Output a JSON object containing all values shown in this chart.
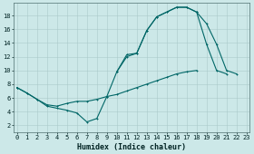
{
  "xlabel": "Humidex (Indice chaleur)",
  "bg_color": "#cce8e8",
  "grid_color": "#aacaca",
  "line_color": "#006666",
  "x_ticks": [
    0,
    1,
    2,
    3,
    4,
    5,
    6,
    7,
    8,
    9,
    10,
    11,
    12,
    13,
    14,
    15,
    16,
    17,
    18,
    19,
    20,
    21,
    22,
    23
  ],
  "y_ticks": [
    2,
    4,
    6,
    8,
    10,
    12,
    14,
    16,
    18
  ],
  "xlim": [
    -0.3,
    23.3
  ],
  "ylim": [
    1.0,
    19.8
  ],
  "line1_y": [
    7.5,
    6.7,
    5.8,
    4.8,
    4.5,
    4.2,
    3.8,
    2.5,
    3.0,
    6.2,
    9.8,
    12.3,
    12.5,
    15.8,
    17.8,
    18.5,
    19.2,
    19.2,
    18.5,
    13.8,
    10.0,
    9.5,
    null,
    null
  ],
  "line2_y": [
    7.5,
    6.7,
    5.8,
    5.0,
    4.8,
    5.2,
    5.5,
    5.5,
    5.8,
    6.2,
    6.5,
    7.0,
    7.5,
    8.0,
    8.5,
    9.0,
    9.5,
    9.8,
    10.0,
    null,
    null,
    null,
    null,
    null
  ],
  "line3_y": [
    7.5,
    null,
    null,
    null,
    null,
    null,
    null,
    null,
    null,
    null,
    9.8,
    12.0,
    12.5,
    15.8,
    17.8,
    18.5,
    19.2,
    19.2,
    18.5,
    16.8,
    13.8,
    10.0,
    9.5,
    null
  ],
  "tick_fontsize": 5.0,
  "xlabel_fontsize": 6.0,
  "lw": 0.8,
  "ms": 2.0
}
